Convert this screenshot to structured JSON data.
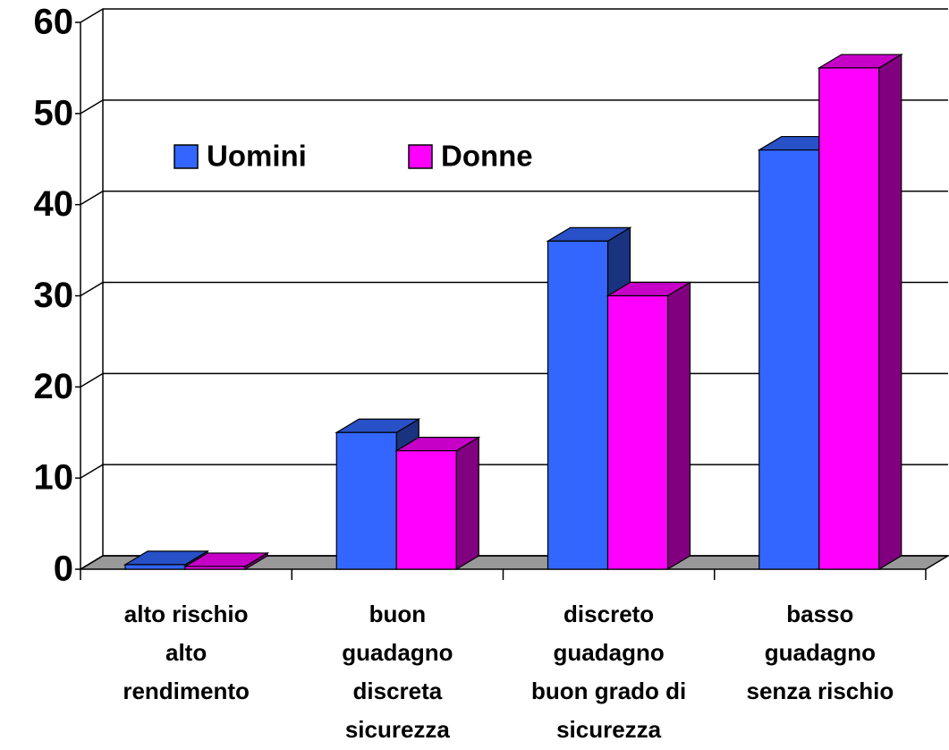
{
  "chart_data": {
    "type": "bar3d",
    "categories": [
      "alto rischio\nalto\nrendimento",
      "buon\nguadagno\ndiscreta\nsicurezza",
      "discreto\nguadagno\nbuon grado di\nsicurezza",
      "basso\nguadagno\nsenza rischio"
    ],
    "series": [
      {
        "name": "Uomini",
        "color": "#3366ff",
        "values": [
          0.5,
          15,
          36,
          46
        ]
      },
      {
        "name": "Donne",
        "color": "#ff00ff",
        "values": [
          0.3,
          13,
          30,
          55
        ]
      }
    ],
    "ylim": [
      0,
      60
    ],
    "yticks": [
      0,
      10,
      20,
      30,
      40,
      50,
      60
    ],
    "grid": true
  }
}
